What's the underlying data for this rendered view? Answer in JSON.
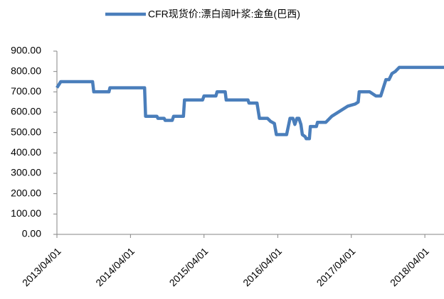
{
  "chart_data": {
    "type": "line",
    "series": [
      {
        "name": "CFR现货价:漂白阔叶浆:金鱼(巴西)",
        "color": "#4a7ebb",
        "x": [
          "2013/04/01",
          "2013/04/20",
          "2013/09/25",
          "2013/10/01",
          "2013/12/15",
          "2013/12/20",
          "2014/06/10",
          "2014/06/15",
          "2014/08/10",
          "2014/08/15",
          "2014/09/15",
          "2014/09/20",
          "2014/10/25",
          "2014/11/01",
          "2014/12/20",
          "2014/12/25",
          "2015/03/25",
          "2015/04/01",
          "2015/05/30",
          "2015/06/05",
          "2015/07/15",
          "2015/07/20",
          "2015/11/05",
          "2015/11/10",
          "2015/12/20",
          "2016/01/01",
          "2016/02/10",
          "2016/02/25",
          "2016/03/15",
          "2016/03/25",
          "2016/05/15",
          "2016/06/01",
          "2016/06/15",
          "2016/06/25",
          "2016/07/05",
          "2016/07/15",
          "2016/07/25",
          "2016/08/01",
          "2016/08/15",
          "2016/08/20",
          "2016/09/05",
          "2016/09/10",
          "2016/10/10",
          "2016/10/15",
          "2016/11/25",
          "2016/12/25",
          "2017/03/15",
          "2017/04/20",
          "2017/05/05",
          "2017/05/10",
          "2017/07/01",
          "2017/08/01",
          "2017/08/25",
          "2017/09/20",
          "2017/10/05",
          "2017/10/20",
          "2017/11/05",
          "2017/11/25",
          "2018/07/05"
        ],
        "values": [
          720,
          750,
          750,
          700,
          700,
          720,
          720,
          580,
          580,
          570,
          570,
          560,
          560,
          580,
          580,
          660,
          660,
          680,
          680,
          700,
          700,
          660,
          660,
          645,
          645,
          570,
          570,
          555,
          545,
          490,
          490,
          570,
          570,
          540,
          570,
          570,
          540,
          490,
          480,
          470,
          470,
          530,
          530,
          550,
          550,
          580,
          630,
          640,
          650,
          700,
          700,
          680,
          680,
          760,
          760,
          790,
          800,
          820,
          820
        ]
      }
    ],
    "xlim": [
      "2013/04/01",
      "2018/07/05"
    ],
    "xticks": [
      "2013/04/01",
      "2014/04/01",
      "2015/04/01",
      "2016/04/01",
      "2017/04/01",
      "2018/04/01"
    ],
    "ylim": [
      0,
      900
    ],
    "yticks": [
      {
        "value": 0,
        "label": "0.00"
      },
      {
        "value": 100,
        "label": "100.00"
      },
      {
        "value": 200,
        "label": "200.00"
      },
      {
        "value": 300,
        "label": "300.00"
      },
      {
        "value": 400,
        "label": "400.00"
      },
      {
        "value": 500,
        "label": "500.00"
      },
      {
        "value": 600,
        "label": "600.00"
      },
      {
        "value": 700,
        "label": "700.00"
      },
      {
        "value": 800,
        "label": "800.00"
      },
      {
        "value": 900,
        "label": "900.00"
      }
    ],
    "legend": "top",
    "grid": false
  }
}
